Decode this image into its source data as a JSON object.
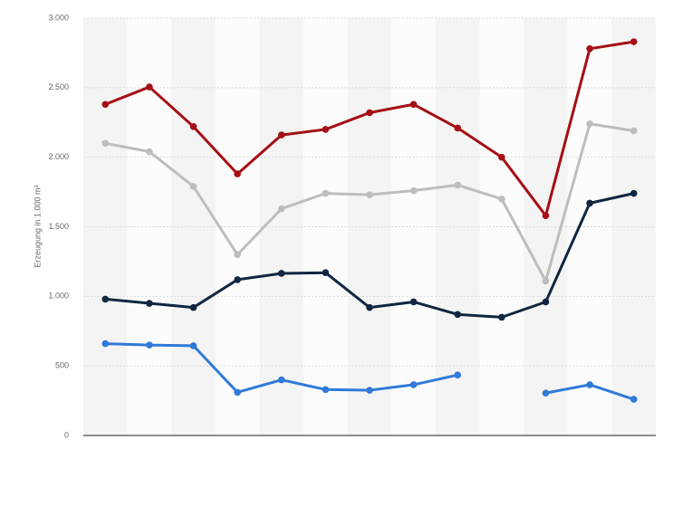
{
  "chart_data": {
    "type": "line",
    "y_label": "Erzeugung in 1.000 m³",
    "categories": [
      null,
      null,
      null,
      null,
      null,
      null,
      null,
      null,
      null,
      null,
      null,
      null,
      null
    ],
    "series": [
      {
        "color": "#a50f15",
        "values": [
          2380,
          2505,
          2220,
          1880,
          2160,
          2200,
          2320,
          2380,
          2210,
          2000,
          1580,
          2780,
          2830
        ]
      },
      {
        "color": "#bdbdbd",
        "values": [
          2100,
          2040,
          1790,
          1300,
          1630,
          1740,
          1730,
          1760,
          1800,
          1700,
          1110,
          2240,
          2190
        ]
      },
      {
        "color": "#0f2741",
        "values": [
          980,
          950,
          920,
          1120,
          1165,
          1170,
          920,
          960,
          870,
          850,
          960,
          1670,
          1740
        ]
      },
      {
        "color": "#2f7ad8",
        "values": [
          660,
          650,
          645,
          310,
          400,
          330,
          325,
          365,
          435,
          null,
          305,
          365,
          260
        ]
      }
    ],
    "ylim": [
      0,
      3000
    ],
    "yticks": [
      0,
      500,
      {
        "value": 1000,
        "label": "1.000"
      },
      {
        "value": 1500,
        "label": "1.500"
      },
      {
        "value": 2000,
        "label": "2.000"
      },
      {
        "value": 2500,
        "label": "2.500"
      },
      {
        "value": 3000,
        "label": "3.000"
      }
    ],
    "grid": true
  }
}
